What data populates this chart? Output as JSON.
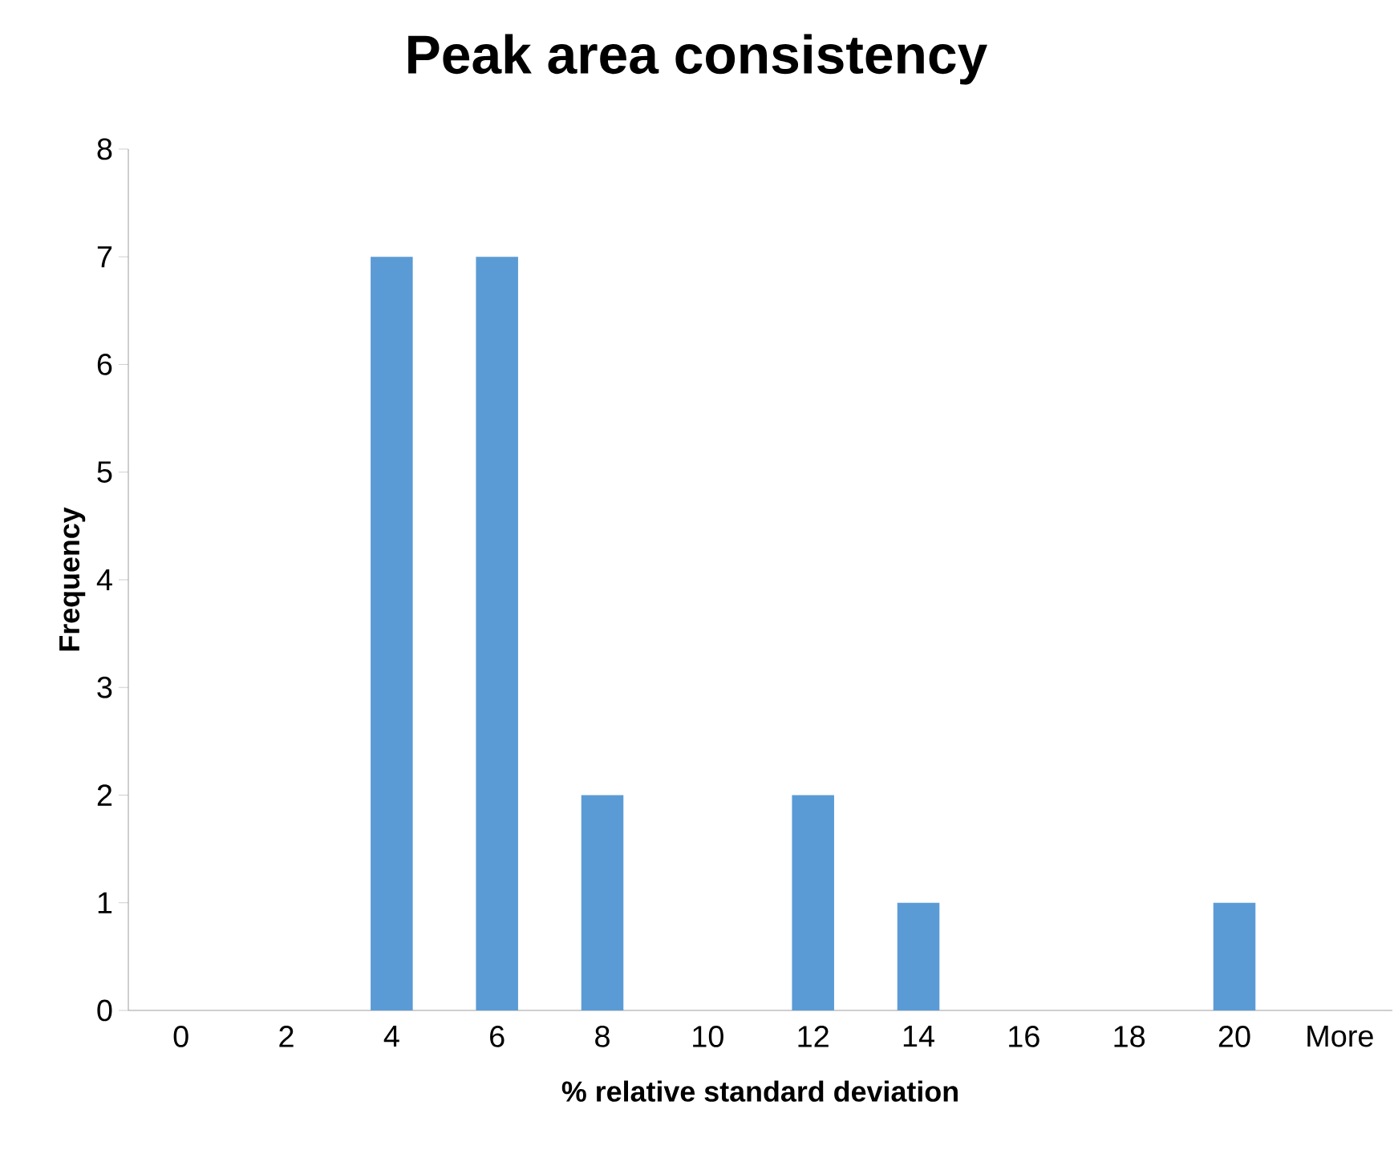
{
  "chart_data": {
    "type": "bar",
    "title": "Peak area consistency",
    "xlabel": "% relative standard deviation",
    "ylabel": "Frequency",
    "categories": [
      "0",
      "2",
      "4",
      "6",
      "8",
      "10",
      "12",
      "14",
      "16",
      "18",
      "20",
      "More"
    ],
    "values": [
      0,
      0,
      7,
      7,
      2,
      0,
      2,
      1,
      0,
      0,
      1,
      0
    ],
    "color": "#5b9bd5",
    "ylim": [
      0,
      8
    ],
    "yticks": [
      0,
      1,
      2,
      3,
      4,
      5,
      6,
      7,
      8
    ]
  }
}
